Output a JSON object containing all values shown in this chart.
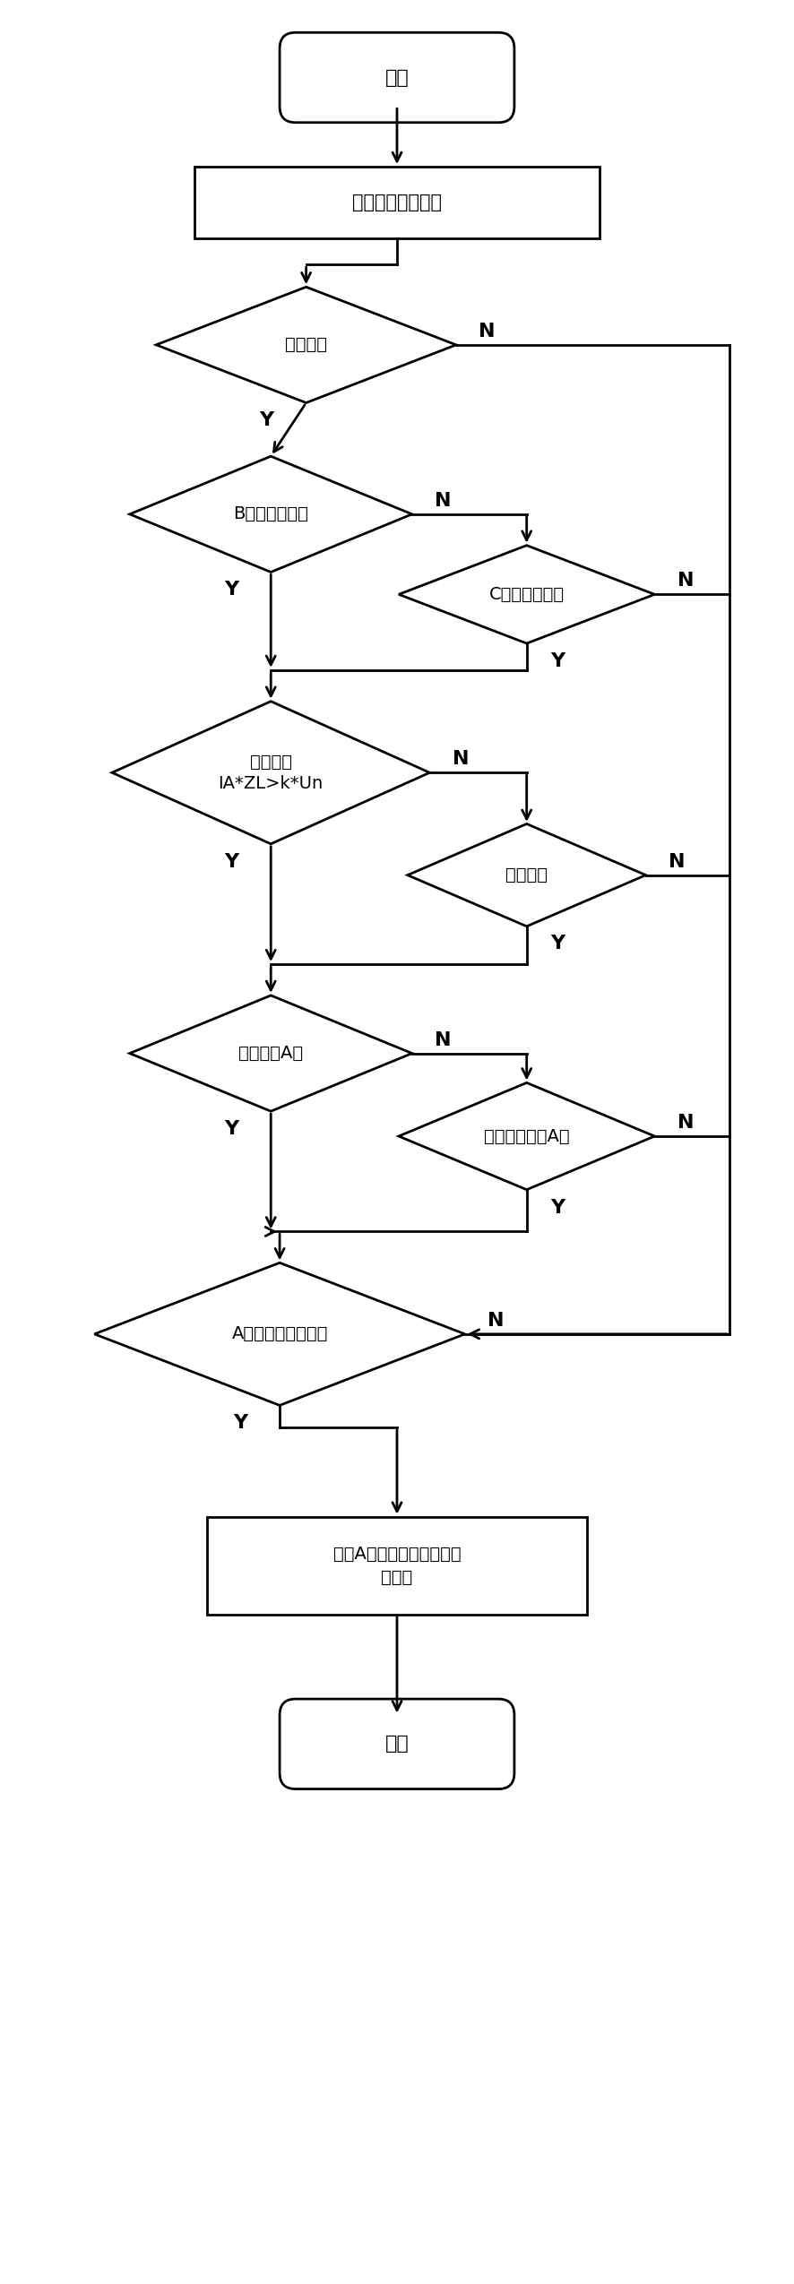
{
  "fig_width": 8.86,
  "fig_height": 25.49,
  "bg_color": "#ffffff",
  "line_color": "#000000",
  "text_color": "#000000",
  "font_size": 14,
  "start_text": "开始",
  "end_text": "结束",
  "p1_text": "保护启动判别逻辑",
  "d1_text": "保护启动",
  "d2_text": "B相是否非全相",
  "d3_text": "C相是否非全相",
  "d4_text": "电压判别\nIA*ZL>k*Un",
  "d5_text": "阻抗方向",
  "d6_text": "非全相选A区",
  "d7_text": "对侧非全相选A区",
  "d8_text": "A相接地四边形动作",
  "p2_text": "输出A相非全相接地距离开\n放标志"
}
